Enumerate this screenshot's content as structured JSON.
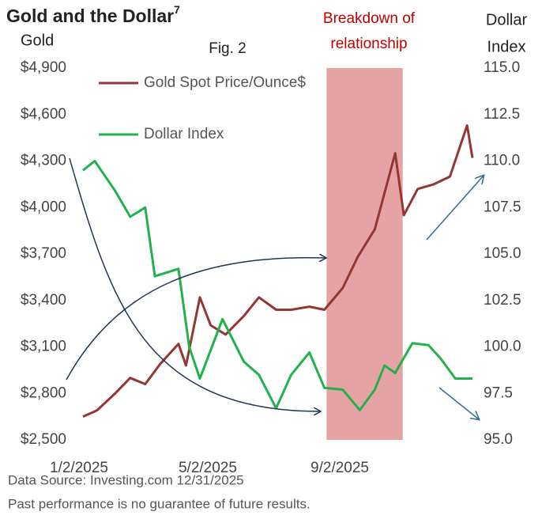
{
  "chart_data": {
    "type": "line",
    "title": "Gold and the Dollar",
    "title_note": "7",
    "ylabel": "Gold",
    "y2label_lines": [
      "Dollar",
      "Index"
    ],
    "figure_label": "Fig. 2",
    "annotation_lines": [
      "Breakdown of",
      "relationship"
    ],
    "shade": [
      "8/17/2025",
      "10/27/2025"
    ],
    "shade_color": "#e6a3a3",
    "sources": [
      "Data Source: Investing.com 12/31/2025",
      "Past performance is no guarantee of future results."
    ],
    "xlim": [
      "1/2/2025",
      "12/31/2025"
    ],
    "xticks": [
      "1/2/2025",
      "5/2/2025",
      "9/2/2025"
    ],
    "ylim": [
      2500,
      4900
    ],
    "yticks": [
      {
        "value": 2500,
        "label": "$2,500"
      },
      {
        "value": 2800,
        "label": "$2,800"
      },
      {
        "value": 3100,
        "label": "$3,100"
      },
      {
        "value": 3400,
        "label": "$3,400"
      },
      {
        "value": 3700,
        "label": "$3,700"
      },
      {
        "value": 4000,
        "label": "$4,000"
      },
      {
        "value": 4300,
        "label": "$4,300"
      },
      {
        "value": 4600,
        "label": "$4,600"
      },
      {
        "value": 4900,
        "label": "$4,900"
      }
    ],
    "y2lim": [
      95,
      115
    ],
    "y2ticks": [
      {
        "value": 95,
        "label": "95.0"
      },
      {
        "value": 97.5,
        "label": "97.5"
      },
      {
        "value": 100,
        "label": "100.0"
      },
      {
        "value": 102.5,
        "label": "102.5"
      },
      {
        "value": 105,
        "label": "105.0"
      },
      {
        "value": 107.5,
        "label": "107.5"
      },
      {
        "value": 110,
        "label": "110.0"
      },
      {
        "value": 112.5,
        "label": "112.5"
      },
      {
        "value": 115,
        "label": "115.0"
      }
    ],
    "series": [
      {
        "name": "Gold Spot Price/Ounce$",
        "color": "#943634",
        "x": [
          "1/2/2025",
          "1/15/2025",
          "2/1/2025",
          "2/15/2025",
          "3/1/2025",
          "3/15/2025",
          "4/1/2025",
          "4/8/2025",
          "4/21/2025",
          "5/1/2025",
          "5/15/2025",
          "6/1/2025",
          "6/15/2025",
          "7/1/2025",
          "7/15/2025",
          "8/1/2025",
          "8/15/2025",
          "9/1/2025",
          "9/15/2025",
          "10/1/2025",
          "10/8/2025",
          "10/20/2025",
          "10/28/2025",
          "11/10/2025",
          "11/25/2025",
          "12/10/2025",
          "12/26/2025",
          "12/31/2025"
        ],
        "values": [
          2650,
          2690,
          2800,
          2900,
          2860,
          2990,
          3120,
          2980,
          3420,
          3240,
          3180,
          3300,
          3420,
          3340,
          3340,
          3360,
          3340,
          3480,
          3680,
          3860,
          4040,
          4350,
          3950,
          4120,
          4150,
          4200,
          4530,
          4320
        ]
      },
      {
        "name": "Dollar Index",
        "color": "#22b14c",
        "axis": "y2",
        "x": [
          "1/2/2025",
          "1/13/2025",
          "2/1/2025",
          "2/15/2025",
          "3/1/2025",
          "3/10/2025",
          "4/1/2025",
          "4/11/2025",
          "4/21/2025",
          "5/12/2025",
          "6/1/2025",
          "6/15/2025",
          "7/1/2025",
          "7/15/2025",
          "8/1/2025",
          "8/15/2025",
          "9/1/2025",
          "9/17/2025",
          "10/1/2025",
          "10/10/2025",
          "10/20/2025",
          "11/5/2025",
          "11/20/2025",
          "12/1/2025",
          "12/15/2025",
          "12/31/2025"
        ],
        "values": [
          109.5,
          110.0,
          108.4,
          107.0,
          107.5,
          103.8,
          104.2,
          100.0,
          98.3,
          101.5,
          99.2,
          98.5,
          96.7,
          98.5,
          99.7,
          97.8,
          97.7,
          96.6,
          97.7,
          99.0,
          98.6,
          100.2,
          100.1,
          99.4,
          98.3,
          98.3
        ]
      }
    ]
  }
}
